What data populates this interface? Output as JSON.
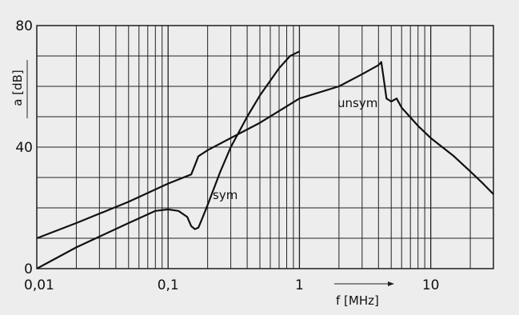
{
  "chart_data": {
    "type": "line",
    "xlabel": "f [MHz]",
    "ylabel": "a [dB]",
    "x_scale": "log",
    "xlim": [
      0.01,
      30
    ],
    "ylim": [
      0,
      80
    ],
    "grid": true,
    "x_tick_labels": [
      {
        "value": 0.01,
        "label": "0,01"
      },
      {
        "value": 0.1,
        "label": "0,1"
      },
      {
        "value": 1,
        "label": "1"
      },
      {
        "value": 10,
        "label": "10"
      }
    ],
    "y_tick_labels": [
      {
        "value": 0,
        "label": "0"
      },
      {
        "value": 40,
        "label": "40"
      },
      {
        "value": 80,
        "label": "80"
      }
    ],
    "series": [
      {
        "name": "unsym",
        "x": [
          0.01,
          0.02,
          0.05,
          0.1,
          0.15,
          0.16,
          0.17,
          0.2,
          0.3,
          0.5,
          1,
          2,
          3,
          4,
          4.2,
          4.4,
          4.6,
          5,
          5.5,
          6,
          8,
          10,
          15,
          20,
          25,
          30
        ],
        "y": [
          10,
          15,
          22,
          28,
          31,
          34,
          37,
          39,
          43,
          48,
          56,
          60,
          64,
          67,
          68,
          62,
          56,
          55,
          56,
          53,
          47,
          43,
          37,
          32,
          28,
          24.5
        ]
      },
      {
        "name": "sym",
        "x": [
          0.01,
          0.02,
          0.05,
          0.08,
          0.1,
          0.12,
          0.14,
          0.15,
          0.16,
          0.17,
          0.18,
          0.2,
          0.25,
          0.3,
          0.4,
          0.5,
          0.7,
          0.85,
          1
        ],
        "y": [
          0,
          7,
          15,
          19,
          19.5,
          19,
          17,
          14,
          13,
          13.5,
          16,
          21,
          32,
          40,
          50,
          57,
          66,
          70,
          71.5
        ]
      }
    ]
  }
}
